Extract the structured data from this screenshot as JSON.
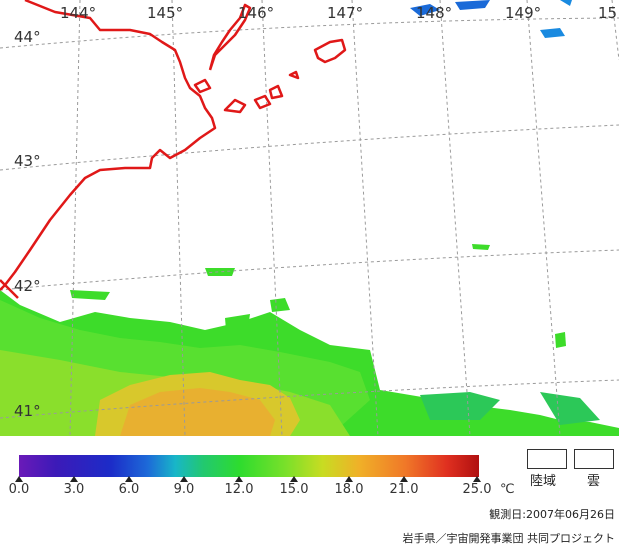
{
  "map": {
    "lon_labels": [
      "144°",
      "145°",
      "146°",
      "147°",
      "148°",
      "149°",
      "15"
    ],
    "lat_labels": [
      "44°",
      "43°",
      "42°",
      "41°"
    ]
  },
  "legend": {
    "ticks": [
      "0.0",
      "3.0",
      "6.0",
      "9.0",
      "12.0",
      "15.0",
      "18.0",
      "21.0",
      "25.0"
    ],
    "unit": "℃",
    "land_label": "陸域",
    "cloud_label": "雲"
  },
  "footer": {
    "observation_date": "観測日:2007年06月26日",
    "credit": "岩手県／宇宙開発事業団 共同プロジェクト"
  },
  "colors": {
    "coastline": "#e01818",
    "grid": "#9a9a9a",
    "sst_cool": "#2edc2e",
    "sst_warm": "#e0c030"
  }
}
